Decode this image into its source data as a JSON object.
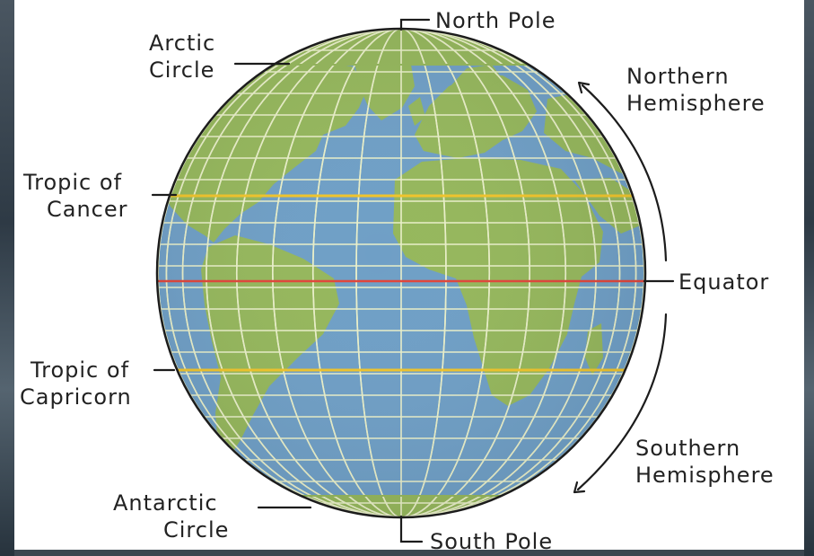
{
  "labels": {
    "north_pole": "North Pole",
    "south_pole": "South Pole",
    "arctic_circle": [
      "Arctic",
      "Circle"
    ],
    "antarctic_circle": [
      "Antarctic",
      "Circle"
    ],
    "tropic_of_cancer": [
      "Tropic of",
      "Cancer"
    ],
    "tropic_of_capricorn": [
      "Tropic of",
      "Capricorn"
    ],
    "equator": "Equator",
    "northern_hemisphere": [
      "Northern",
      "Hemisphere"
    ],
    "southern_hemisphere": [
      "Southern",
      "Hemisphere"
    ]
  },
  "colors": {
    "ocean": "#6f9fc6",
    "land": "#95b75c",
    "grid": "#e9efc9",
    "equator": "#e0453a",
    "tropics": "#f0c42a",
    "outline": "#1c1c1c"
  }
}
